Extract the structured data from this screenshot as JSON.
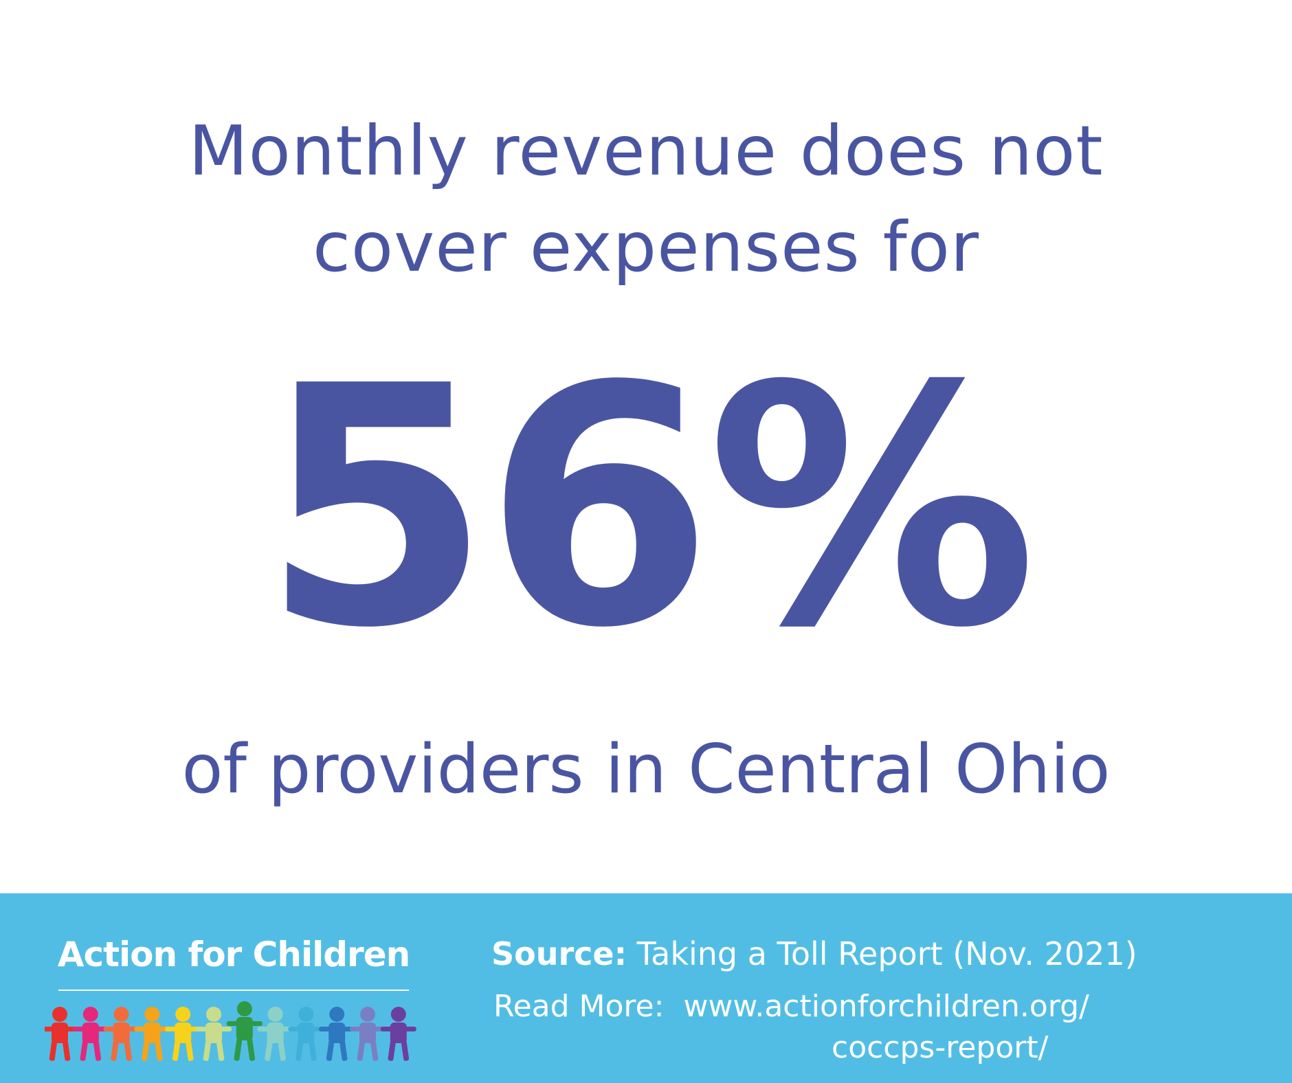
{
  "headline": {
    "line1": "Monthly revenue does not",
    "line2": "cover expenses for"
  },
  "stat": {
    "value": "56%"
  },
  "subline": "of providers in Central Ohio",
  "footer": {
    "logo_text": "Action for Children",
    "source_label": "Source:",
    "source_text": "Taking a Toll Report (Nov. 2021)",
    "read_more_label": "Read More:",
    "url_line1": "www.actionforchildren.org/",
    "url_line2": "coccps-report/"
  },
  "colors": {
    "brand_blue": "#4a55a2",
    "footer_bg": "#52bde4",
    "kids": [
      "#e8312d",
      "#e6287a",
      "#f26b3a",
      "#f5a31a",
      "#f7d21c",
      "#c9dc8c",
      "#2e9a45",
      "#8cd1c7",
      "#3fb0d9",
      "#2e78c0",
      "#7a7fc4",
      "#6b3fa0"
    ]
  }
}
